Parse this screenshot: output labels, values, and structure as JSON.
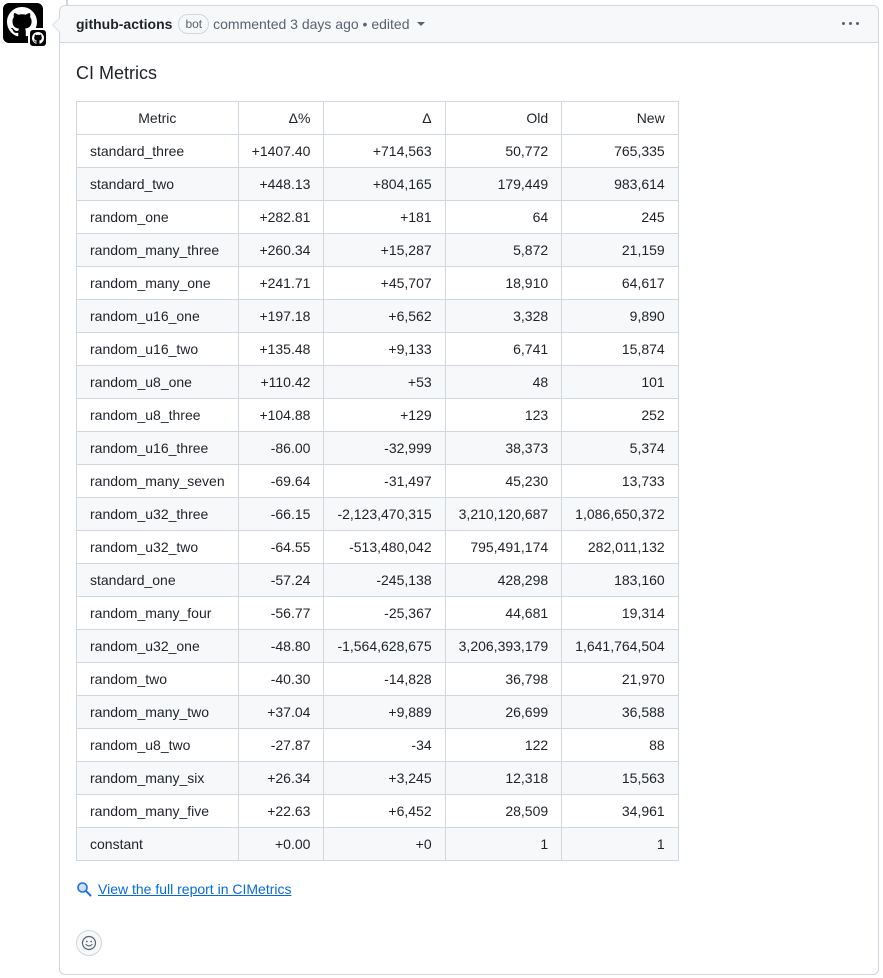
{
  "comment": {
    "author": "github-actions",
    "bot_label": "bot",
    "action": "commented 3 days ago • edited"
  },
  "heading": "CI Metrics",
  "table": {
    "headers": [
      "Metric",
      "Δ%",
      "Δ",
      "Old",
      "New"
    ],
    "rows": [
      [
        "standard_three",
        "+1407.40",
        "+714,563",
        "50,772",
        "765,335"
      ],
      [
        "standard_two",
        "+448.13",
        "+804,165",
        "179,449",
        "983,614"
      ],
      [
        "random_one",
        "+282.81",
        "+181",
        "64",
        "245"
      ],
      [
        "random_many_three",
        "+260.34",
        "+15,287",
        "5,872",
        "21,159"
      ],
      [
        "random_many_one",
        "+241.71",
        "+45,707",
        "18,910",
        "64,617"
      ],
      [
        "random_u16_one",
        "+197.18",
        "+6,562",
        "3,328",
        "9,890"
      ],
      [
        "random_u16_two",
        "+135.48",
        "+9,133",
        "6,741",
        "15,874"
      ],
      [
        "random_u8_one",
        "+110.42",
        "+53",
        "48",
        "101"
      ],
      [
        "random_u8_three",
        "+104.88",
        "+129",
        "123",
        "252"
      ],
      [
        "random_u16_three",
        "-86.00",
        "-32,999",
        "38,373",
        "5,374"
      ],
      [
        "random_many_seven",
        "-69.64",
        "-31,497",
        "45,230",
        "13,733"
      ],
      [
        "random_u32_three",
        "-66.15",
        "-2,123,470,315",
        "3,210,120,687",
        "1,086,650,372"
      ],
      [
        "random_u32_two",
        "-64.55",
        "-513,480,042",
        "795,491,174",
        "282,011,132"
      ],
      [
        "standard_one",
        "-57.24",
        "-245,138",
        "428,298",
        "183,160"
      ],
      [
        "random_many_four",
        "-56.77",
        "-25,367",
        "44,681",
        "19,314"
      ],
      [
        "random_u32_one",
        "-48.80",
        "-1,564,628,675",
        "3,206,393,179",
        "1,641,764,504"
      ],
      [
        "random_two",
        "-40.30",
        "-14,828",
        "36,798",
        "21,970"
      ],
      [
        "random_many_two",
        "+37.04",
        "+9,889",
        "26,699",
        "36,588"
      ],
      [
        "random_u8_two",
        "-27.87",
        "-34",
        "122",
        "88"
      ],
      [
        "random_many_six",
        "+26.34",
        "+3,245",
        "12,318",
        "15,563"
      ],
      [
        "random_many_five",
        "+22.63",
        "+6,452",
        "28,509",
        "34,961"
      ],
      [
        "constant",
        "+0.00",
        "+0",
        "1",
        "1"
      ]
    ]
  },
  "report_link": "View the full report in CIMetrics",
  "icons": {
    "avatar": "github-logo-icon",
    "menu": "kebab-horizontal-icon",
    "link": "magnifying-glass-icon",
    "reaction": "smiley-icon"
  }
}
